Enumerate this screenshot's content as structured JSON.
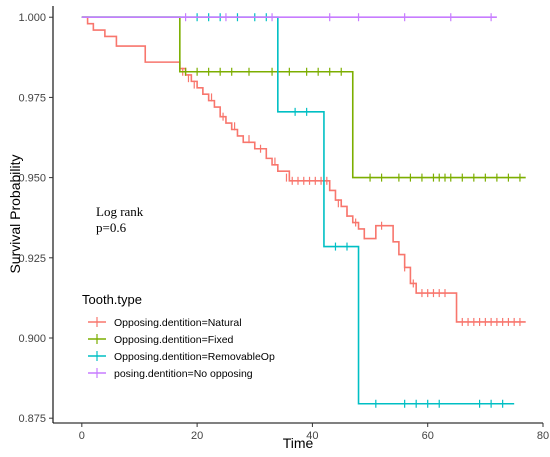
{
  "chart_data": {
    "type": "line",
    "xlabel": "Time",
    "ylabel": "Survival Probability",
    "xlim": [
      -5,
      80
    ],
    "ylim": [
      0.8735,
      1.0035
    ],
    "x_ticks": [
      0,
      20,
      40,
      60,
      80
    ],
    "y_ticks": [
      0.875,
      0.9,
      0.925,
      0.95,
      0.975,
      1.0
    ],
    "y_tick_labels": [
      "0.875",
      "0.900",
      "0.925",
      "0.950",
      "0.975",
      "1.000"
    ],
    "grid": false,
    "annotation": [
      "Log rank",
      "p=0.6"
    ],
    "legend": {
      "title": "Tooth.type",
      "placement": "bottom-left"
    },
    "series": [
      {
        "name": "Opposing.dentition=Natural",
        "color": "#f8766d",
        "steps": [
          [
            0,
            1.0
          ],
          [
            1,
            0.998
          ],
          [
            2,
            0.996
          ],
          [
            4,
            0.994
          ],
          [
            6,
            0.991
          ],
          [
            11,
            0.986
          ],
          [
            17,
            0.984
          ],
          [
            18,
            0.982
          ],
          [
            19,
            0.98
          ],
          [
            20,
            0.978
          ],
          [
            21,
            0.976
          ],
          [
            22,
            0.974
          ],
          [
            23,
            0.972
          ],
          [
            24,
            0.969
          ],
          [
            25,
            0.967
          ],
          [
            26,
            0.965
          ],
          [
            27,
            0.963
          ],
          [
            28,
            0.961
          ],
          [
            30,
            0.959
          ],
          [
            32,
            0.956
          ],
          [
            33,
            0.954
          ],
          [
            34,
            0.952
          ],
          [
            36,
            0.949
          ],
          [
            43,
            0.946
          ],
          [
            44,
            0.943
          ],
          [
            45,
            0.941
          ],
          [
            46,
            0.938
          ],
          [
            47,
            0.936
          ],
          [
            48,
            0.934
          ],
          [
            49,
            0.931
          ],
          [
            51,
            0.935
          ],
          [
            54,
            0.93
          ],
          [
            55,
            0.926
          ],
          [
            56,
            0.922
          ],
          [
            57,
            0.917
          ],
          [
            58,
            0.914
          ],
          [
            65,
            0.905
          ],
          [
            77,
            0.905
          ]
        ],
        "censored": [
          [
            17.5,
            0.983
          ],
          [
            18.5,
            0.981
          ],
          [
            19.5,
            0.979
          ],
          [
            21,
            0.977
          ],
          [
            22.5,
            0.975
          ],
          [
            24.5,
            0.969
          ],
          [
            26.5,
            0.966
          ],
          [
            29,
            0.962
          ],
          [
            31,
            0.959
          ],
          [
            33.5,
            0.955
          ],
          [
            35.5,
            0.95
          ],
          [
            36.5,
            0.949
          ],
          [
            37.5,
            0.949
          ],
          [
            38.5,
            0.949
          ],
          [
            39.5,
            0.949
          ],
          [
            40.5,
            0.949
          ],
          [
            41.5,
            0.949
          ],
          [
            42.5,
            0.949
          ],
          [
            44.5,
            0.942
          ],
          [
            46,
            0.939
          ],
          [
            47.5,
            0.936
          ],
          [
            49,
            0.932
          ],
          [
            52,
            0.935
          ],
          [
            56,
            0.922
          ],
          [
            57.5,
            0.917
          ],
          [
            59,
            0.914
          ],
          [
            60,
            0.914
          ],
          [
            61,
            0.914
          ],
          [
            62,
            0.914
          ],
          [
            63,
            0.914
          ],
          [
            66,
            0.905
          ],
          [
            67,
            0.905
          ],
          [
            68,
            0.905
          ],
          [
            69,
            0.905
          ],
          [
            70,
            0.905
          ],
          [
            71,
            0.905
          ],
          [
            72,
            0.905
          ],
          [
            73,
            0.905
          ],
          [
            74,
            0.905
          ],
          [
            75,
            0.905
          ],
          [
            76,
            0.905
          ]
        ]
      },
      {
        "name": "Opposing.dentition=Fixed",
        "color": "#7cae00",
        "steps": [
          [
            0,
            1.0
          ],
          [
            17,
            0.983
          ],
          [
            47,
            0.95
          ],
          [
            77,
            0.95
          ]
        ],
        "censored": [
          [
            18,
            0.983
          ],
          [
            20,
            0.983
          ],
          [
            22,
            0.983
          ],
          [
            24,
            0.983
          ],
          [
            26,
            0.983
          ],
          [
            29,
            0.983
          ],
          [
            33,
            0.983
          ],
          [
            36,
            0.983
          ],
          [
            39,
            0.983
          ],
          [
            41,
            0.983
          ],
          [
            43,
            0.983
          ],
          [
            45,
            0.983
          ],
          [
            50,
            0.95
          ],
          [
            52,
            0.95
          ],
          [
            55,
            0.95
          ],
          [
            57,
            0.95
          ],
          [
            59,
            0.95
          ],
          [
            61,
            0.95
          ],
          [
            62,
            0.95
          ],
          [
            63,
            0.95
          ],
          [
            64,
            0.95
          ],
          [
            66,
            0.95
          ],
          [
            68,
            0.95
          ],
          [
            70,
            0.95
          ],
          [
            72,
            0.95
          ],
          [
            74,
            0.95
          ],
          [
            76,
            0.95
          ]
        ]
      },
      {
        "name": "Opposing.dentition=RemovableOp",
        "color": "#00bfc4",
        "steps": [
          [
            0,
            1.0
          ],
          [
            34,
            0.9705
          ],
          [
            42,
            0.9285
          ],
          [
            48,
            0.8795
          ],
          [
            75,
            0.8795
          ]
        ],
        "censored": [
          [
            20,
            1.0
          ],
          [
            22,
            1.0
          ],
          [
            24,
            1.0
          ],
          [
            27,
            1.0
          ],
          [
            30,
            1.0
          ],
          [
            32,
            1.0
          ],
          [
            37,
            0.9705
          ],
          [
            39,
            0.9705
          ],
          [
            44,
            0.9285
          ],
          [
            46,
            0.9285
          ],
          [
            51,
            0.8795
          ],
          [
            56,
            0.8795
          ],
          [
            58,
            0.8795
          ],
          [
            60,
            0.8795
          ],
          [
            62,
            0.8795
          ],
          [
            69,
            0.8795
          ],
          [
            71,
            0.8795
          ],
          [
            73,
            0.8795
          ]
        ]
      },
      {
        "name": "posing.dentition=No opposing",
        "color": "#c77cff",
        "steps": [
          [
            0,
            1.0
          ],
          [
            72,
            1.0
          ]
        ],
        "censored": [
          [
            18,
            1.0
          ],
          [
            25,
            1.0
          ],
          [
            33,
            1.0
          ],
          [
            43,
            1.0
          ],
          [
            48,
            1.0
          ],
          [
            56,
            1.0
          ],
          [
            64,
            1.0
          ],
          [
            71,
            1.0
          ]
        ]
      }
    ]
  }
}
